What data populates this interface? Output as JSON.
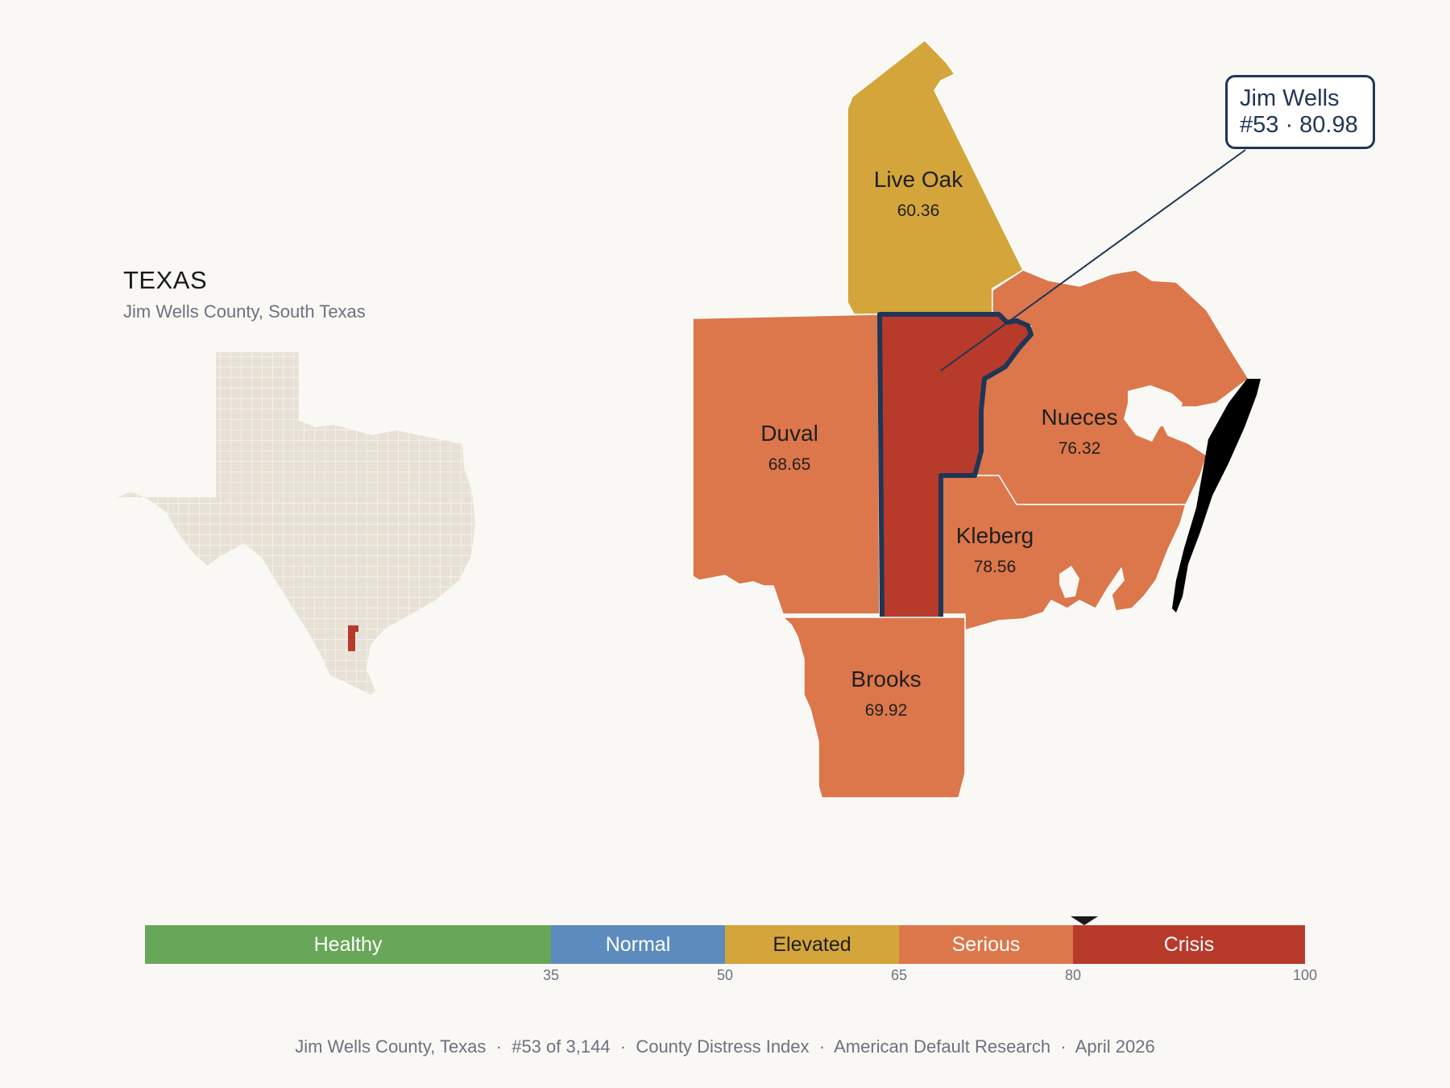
{
  "inset": {
    "title": "TEXAS",
    "subtitle": "Jim Wells County, South Texas"
  },
  "counties": [
    {
      "id": "live-oak",
      "name": "Live Oak",
      "score": "60.36",
      "color": "#d3a53b"
    },
    {
      "id": "duval",
      "name": "Duval",
      "score": "68.65",
      "color": "#dc774b"
    },
    {
      "id": "nueces",
      "name": "Nueces",
      "score": "76.32",
      "color": "#dc774b"
    },
    {
      "id": "kleberg",
      "name": "Kleberg",
      "score": "78.56",
      "color": "#dc774b"
    },
    {
      "id": "brooks",
      "name": "Brooks",
      "score": "69.92",
      "color": "#dc774b"
    },
    {
      "id": "jim-wells",
      "name": "Jim Wells",
      "score": "80.98",
      "color": "#b83a2a"
    }
  ],
  "callout": {
    "line1": "Jim Wells",
    "line2": "#53 · 80.98"
  },
  "scale": {
    "segments": [
      {
        "label": "Healthy",
        "color": "#68a758",
        "from": 0,
        "to": 35,
        "text_color": "#ffffff"
      },
      {
        "label": "Normal",
        "color": "#5d8bbd",
        "from": 35,
        "to": 50,
        "text_color": "#ffffff"
      },
      {
        "label": "Elevated",
        "color": "#d3a53b",
        "from": 50,
        "to": 65,
        "text_color": "#1f1f1f"
      },
      {
        "label": "Serious",
        "color": "#dc774b",
        "from": 65,
        "to": 80,
        "text_color": "#ffffff"
      },
      {
        "label": "Crisis",
        "color": "#b83a2a",
        "from": 80,
        "to": 100,
        "text_color": "#ffffff"
      }
    ],
    "ticks": [
      "35",
      "50",
      "65",
      "80",
      "100"
    ],
    "marker_value": 80.98
  },
  "footer": {
    "county": "Jim Wells County, Texas",
    "rank": "#53 of 3,144",
    "index": "County Distress Index",
    "source": "American Default Research",
    "date": "April 2026"
  },
  "colors": {
    "background": "#faf8f4",
    "highlight_outline": "#1f3656",
    "inset_fill": "#e8e2d6",
    "inset_highlight": "#b83a2a"
  }
}
